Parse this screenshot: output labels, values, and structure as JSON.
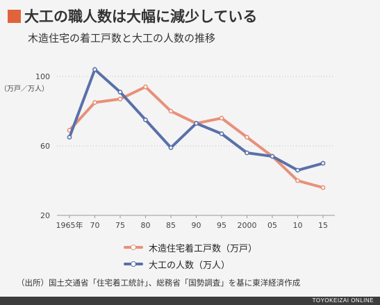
{
  "header": {
    "title": "大工の職人数は大幅に減少している",
    "subtitle": "木造住宅の着工戸数と大工の人数の推移"
  },
  "axis_unit": "（万戸／万人）",
  "source": "（出所）国土交通省「住宅着工統計」、総務省「国勢調査」を基に東洋経済作成",
  "footer": "TOYOKEIZAI ONLINE",
  "colors": {
    "accent": "#e0633c",
    "orange_series": "#e8907a",
    "blue_series": "#5a70a8"
  },
  "chart_data": {
    "type": "line",
    "title": "大工の職人数は大幅に減少している",
    "subtitle": "木造住宅の着工戸数と大工の人数の推移",
    "ylabel": "（万戸／万人）",
    "ylim": [
      20,
      100
    ],
    "yticks": [
      20,
      60,
      100
    ],
    "categories": [
      "1965年",
      "70",
      "75",
      "80",
      "85",
      "90",
      "95",
      "2000",
      "05",
      "10",
      "15"
    ],
    "grid": true,
    "legend_position": "bottom",
    "series": [
      {
        "name": "木造住宅着工戸数（万戸）",
        "color": "#e8907a",
        "values": [
          69,
          85,
          87,
          94,
          80,
          73,
          76,
          65,
          54,
          40,
          36
        ]
      },
      {
        "name": "大工の人数（万人）",
        "color": "#5a70a8",
        "values": [
          65,
          104,
          91,
          75,
          59,
          73,
          67,
          56,
          54,
          46,
          50
        ]
      }
    ]
  }
}
